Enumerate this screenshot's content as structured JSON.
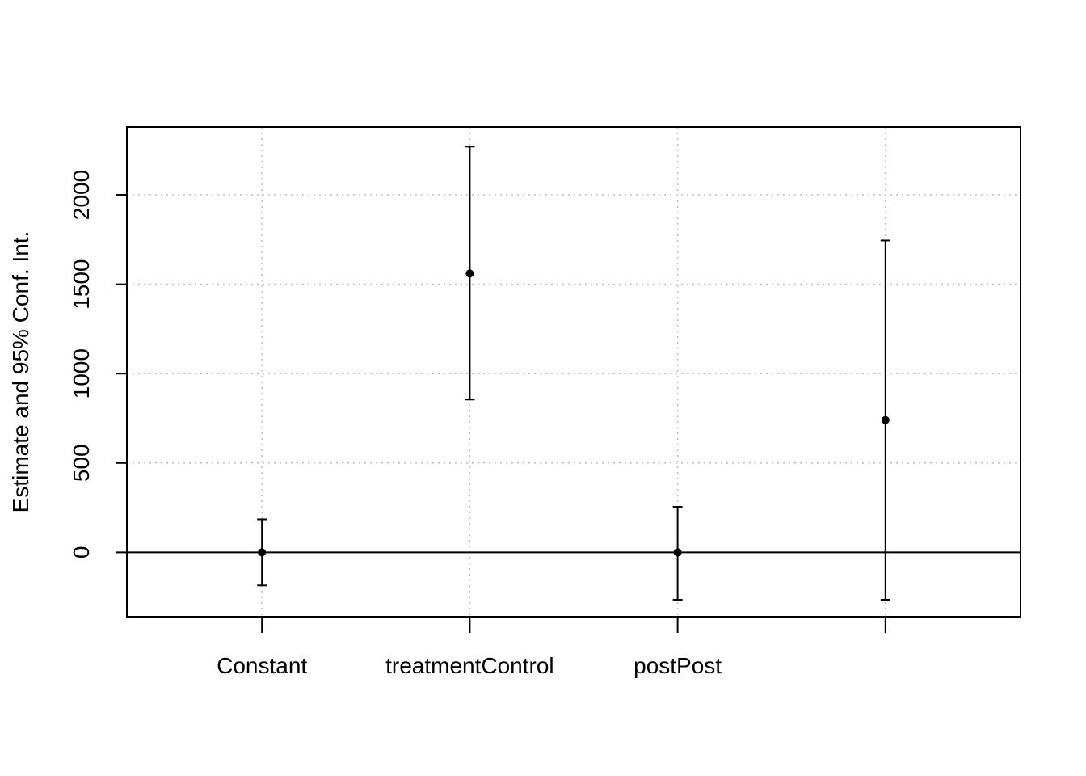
{
  "chart_data": {
    "type": "errorbar",
    "title": "",
    "xlabel": "",
    "ylabel": "Estimate and 95% Conf. Int.",
    "ylim": [
      -360,
      2380
    ],
    "xlim": [
      0.35,
      4.65
    ],
    "yticks": [
      0,
      500,
      1000,
      1500,
      2000
    ],
    "ytick_labels": [
      "0",
      "500",
      "1000",
      "1500",
      "2000"
    ],
    "categories": [
      "Constant",
      "treatmentControl",
      "postPost",
      ""
    ],
    "estimates": [
      0,
      1560,
      0,
      740
    ],
    "lower": [
      -185,
      855,
      -265,
      -265
    ],
    "upper": [
      185,
      2270,
      255,
      1745
    ],
    "reference_line": 0,
    "grid": true,
    "colors": {
      "points": "#000000",
      "grid": "#bebebe",
      "axis": "#000000"
    }
  }
}
